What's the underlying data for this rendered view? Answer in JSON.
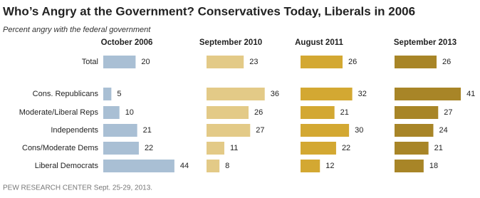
{
  "chart_data": {
    "type": "bar",
    "title": "Who’s Angry at the Government? Conservatives Today, Liberals in 2006",
    "subtitle": "Percent angry with the federal government",
    "source": "PEW RESEARCH CENTER Sept. 25-29, 2013.",
    "categories": [
      "Total",
      "Cons. Republicans",
      "Moderate/Liberal Reps",
      "Independents",
      "Cons/Moderate Dems",
      "Liberal Democrats"
    ],
    "series": [
      {
        "name": "October 2006",
        "color": "#a9bfd4",
        "values": [
          20,
          5,
          10,
          21,
          22,
          44
        ]
      },
      {
        "name": "September 2010",
        "color": "#e3ca87",
        "values": [
          23,
          36,
          26,
          27,
          11,
          8
        ]
      },
      {
        "name": "August 2011",
        "color": "#d3a832",
        "values": [
          26,
          32,
          21,
          30,
          22,
          12
        ]
      },
      {
        "name": "September 2013",
        "color": "#a88527",
        "values": [
          26,
          41,
          27,
          24,
          21,
          18
        ]
      }
    ]
  }
}
